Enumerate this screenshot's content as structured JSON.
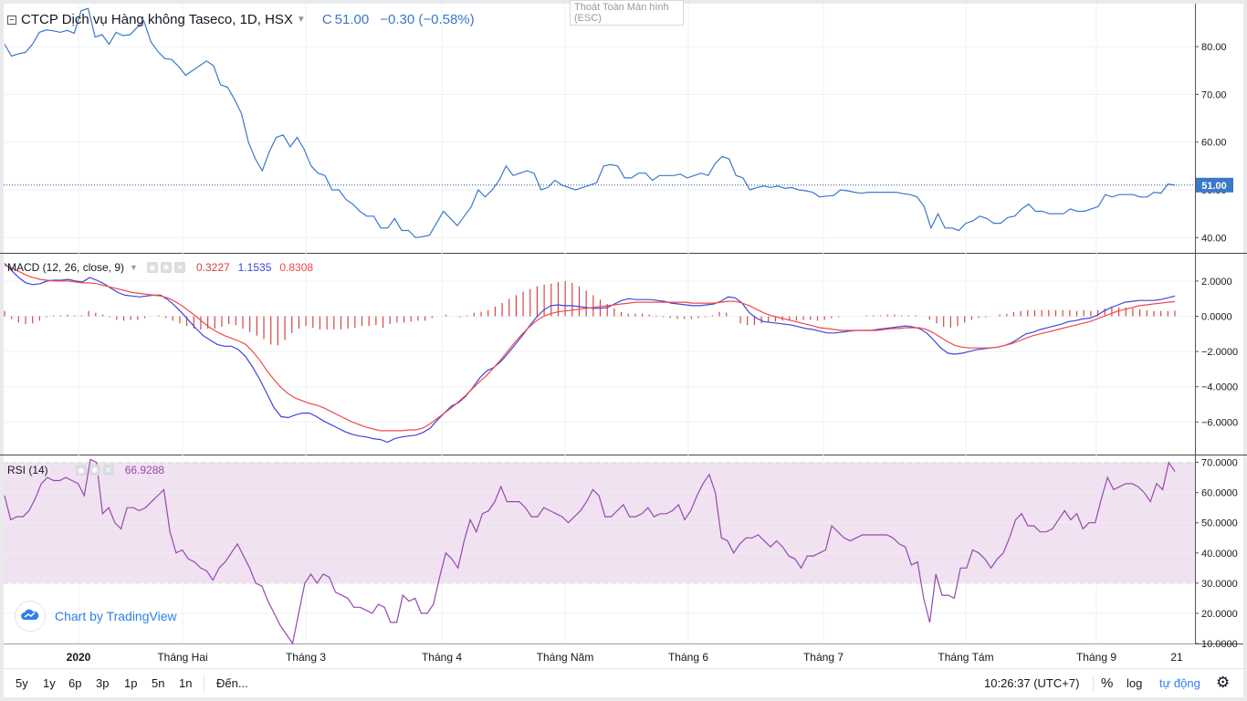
{
  "header": {
    "title": "CTCP Dịch vụ Hàng không Taseco, 1D, HSX",
    "close_label": "C",
    "close_value": "51.00",
    "change": "−0.30 (−0.58%)"
  },
  "tooltip": {
    "line1": "Thoát Toàn Màn hình",
    "line2": "(ESC)"
  },
  "colors": {
    "price": "#3a78c8",
    "macd": "#4045d6",
    "signal": "#f04848",
    "histogram": "#d64545",
    "rsi": "#9548b0",
    "rsi_band": "#f1e2f1"
  },
  "macd_legend": {
    "name": "MACD (12, 26, close, 9)",
    "hist": "0.3227",
    "macd": "1.1535",
    "signal": "0.8308"
  },
  "rsi_legend": {
    "name": "RSI (14)",
    "value": "66.9288"
  },
  "logo": {
    "text": "Chart by TradingView",
    "icon": "tradingview-cloud-icon"
  },
  "bottom_bar": {
    "ranges": [
      "5y",
      "1y",
      "6p",
      "3p",
      "1p",
      "5n",
      "1n"
    ],
    "goto": "Đến...",
    "time": "10:26:37 (UTC+7)",
    "percent": "%",
    "log": "log",
    "auto": "tự động",
    "settings_icon": "gear-icon"
  },
  "chart_data": [
    {
      "type": "line",
      "title": "CTCP Dịch vụ Hàng không Taseco, 1D, HSX",
      "series": [
        {
          "values": [
            80.5,
            78,
            78.5,
            78.8,
            80.5,
            83,
            83.5,
            83.3,
            83,
            83.4,
            82.8,
            87.5,
            88,
            82,
            82.5,
            80.5,
            83,
            82.3,
            82.5,
            84,
            85.4,
            81,
            79,
            77.5,
            77.3,
            75.8,
            74,
            75,
            76,
            77,
            76,
            72,
            71.5,
            69,
            66,
            60,
            56.5,
            54,
            58,
            61,
            61.5,
            59,
            61,
            58.5,
            55,
            53.5,
            53,
            50,
            50,
            48,
            47,
            45.5,
            44.5,
            44.5,
            42,
            42,
            44,
            41.5,
            41.5,
            40,
            40.2,
            40.5,
            43,
            45.5,
            44,
            42.5,
            44.5,
            46.5,
            50,
            48.5,
            50,
            52,
            55,
            53,
            53.5,
            54,
            53.5,
            50,
            50.5,
            52,
            51,
            50.5,
            50,
            50.5,
            51,
            51.5,
            55,
            55.3,
            55,
            52.5,
            52.5,
            53.5,
            53.5,
            52,
            53,
            53,
            53,
            53.3,
            52.5,
            53,
            53.5,
            53,
            55.5,
            57,
            56.5,
            53,
            52.5,
            50,
            50.5,
            50.8,
            50.5,
            50.8,
            50.3,
            50.5,
            50,
            49.8,
            49.5,
            48.5,
            48.7,
            48.8,
            50,
            49.8,
            49.5,
            49.3,
            49.5,
            49.5,
            49.5,
            49.5,
            49.5,
            49.2,
            49,
            48.5,
            46.5,
            42,
            45,
            42,
            42,
            41.5,
            43,
            43.5,
            44.5,
            44,
            43,
            43,
            44.2,
            44.5,
            46,
            47,
            45.5,
            45.5,
            45,
            45,
            45,
            46,
            45.5,
            45.5,
            46,
            46.5,
            49,
            48.5,
            49,
            49,
            49,
            48.5,
            48.5,
            49.5,
            49.3,
            51.2,
            51
          ]
        }
      ],
      "last_value": 51.0,
      "ylim": [
        37,
        89
      ],
      "yticks": [
        "80.00",
        "70.00",
        "60.00",
        "50.00",
        "40.00"
      ]
    },
    {
      "type": "line",
      "title": "MACD (12, 26, close, 9)",
      "series": [
        {
          "values": [
            3,
            2.6,
            2.2,
            1.9,
            1.8,
            1.85,
            2,
            2.05,
            2.05,
            2.1,
            2,
            1.95,
            2.2,
            2.05,
            1.85,
            1.6,
            1.35,
            1.2,
            1.15,
            1.1,
            1.15,
            1.2,
            1.2,
            0.95,
            0.6,
            0.2,
            -0.25,
            -0.7,
            -1.1,
            -1.35,
            -1.6,
            -1.7,
            -1.7,
            -1.9,
            -2.3,
            -2.9,
            -3.6,
            -4.4,
            -5.2,
            -5.7,
            -5.75,
            -5.6,
            -5.5,
            -5.5,
            -5.7,
            -5.95,
            -6.15,
            -6.35,
            -6.55,
            -6.7,
            -6.8,
            -6.85,
            -6.95,
            -7,
            -7.15,
            -6.95,
            -6.85,
            -6.8,
            -6.75,
            -6.6,
            -6.35,
            -5.9,
            -5.5,
            -5.1,
            -4.9,
            -4.55,
            -4.05,
            -3.5,
            -3.1,
            -2.9,
            -2.55,
            -2.1,
            -1.6,
            -1.1,
            -0.55,
            -0.05,
            0.35,
            0.6,
            0.65,
            0.6,
            0.6,
            0.55,
            0.5,
            0.45,
            0.45,
            0.5,
            0.7,
            0.9,
            1,
            0.95,
            0.95,
            0.95,
            0.9,
            0.85,
            0.75,
            0.7,
            0.65,
            0.6,
            0.6,
            0.65,
            0.7,
            0.85,
            1.1,
            1.05,
            0.75,
            0.2,
            -0.1,
            -0.3,
            -0.35,
            -0.4,
            -0.45,
            -0.5,
            -0.6,
            -0.7,
            -0.75,
            -0.85,
            -0.95,
            -0.95,
            -0.9,
            -0.85,
            -0.8,
            -0.8,
            -0.8,
            -0.75,
            -0.7,
            -0.65,
            -0.6,
            -0.55,
            -0.6,
            -0.7,
            -0.95,
            -1.35,
            -1.8,
            -2.1,
            -2.15,
            -2.1,
            -2,
            -1.9,
            -1.85,
            -1.8,
            -1.75,
            -1.65,
            -1.5,
            -1.25,
            -1,
            -0.9,
            -0.75,
            -0.65,
            -0.55,
            -0.45,
            -0.3,
            -0.25,
            -0.15,
            -0.1,
            0.05,
            0.3,
            0.5,
            0.65,
            0.8,
            0.85,
            0.9,
            0.9,
            0.9,
            0.95,
            1.05,
            1.15
          ]
        },
        {
          "values": [
            2.9,
            2.75,
            2.55,
            2.35,
            2.2,
            2.1,
            2.05,
            2,
            2,
            2,
            1.95,
            1.9,
            1.9,
            1.85,
            1.75,
            1.65,
            1.55,
            1.45,
            1.35,
            1.3,
            1.25,
            1.2,
            1.15,
            1.05,
            0.85,
            0.6,
            0.3,
            0,
            -0.35,
            -0.65,
            -0.9,
            -1.1,
            -1.25,
            -1.4,
            -1.6,
            -2,
            -2.5,
            -3.1,
            -3.6,
            -4.05,
            -4.4,
            -4.65,
            -4.8,
            -4.95,
            -5.05,
            -5.2,
            -5.4,
            -5.6,
            -5.8,
            -6,
            -6.15,
            -6.3,
            -6.4,
            -6.5,
            -6.5,
            -6.5,
            -6.5,
            -6.45,
            -6.45,
            -6.35,
            -6.1,
            -5.8,
            -5.5,
            -5.2,
            -4.85,
            -4.5,
            -4.1,
            -3.7,
            -3.35,
            -2.9,
            -2.45,
            -1.95,
            -1.45,
            -1,
            -0.6,
            -0.25,
            0,
            0.15,
            0.25,
            0.3,
            0.35,
            0.4,
            0.45,
            0.5,
            0.55,
            0.6,
            0.65,
            0.7,
            0.75,
            0.8,
            0.8,
            0.8,
            0.8,
            0.8,
            0.8,
            0.8,
            0.8,
            0.75,
            0.75,
            0.75,
            0.75,
            0.8,
            0.85,
            0.85,
            0.75,
            0.6,
            0.4,
            0.2,
            0.05,
            -0.05,
            -0.15,
            -0.25,
            -0.35,
            -0.45,
            -0.55,
            -0.65,
            -0.7,
            -0.75,
            -0.8,
            -0.8,
            -0.8,
            -0.8,
            -0.8,
            -0.8,
            -0.75,
            -0.7,
            -0.7,
            -0.65,
            -0.65,
            -0.65,
            -0.75,
            -0.95,
            -1.2,
            -1.45,
            -1.65,
            -1.75,
            -1.8,
            -1.8,
            -1.8,
            -1.8,
            -1.75,
            -1.65,
            -1.55,
            -1.4,
            -1.25,
            -1.1,
            -1,
            -0.9,
            -0.8,
            -0.7,
            -0.6,
            -0.5,
            -0.4,
            -0.3,
            -0.15,
            0,
            0.15,
            0.3,
            0.4,
            0.5,
            0.6,
            0.65,
            0.7,
            0.75,
            0.8,
            0.83
          ]
        }
      ],
      "histogram": [
        0.3,
        -0.15,
        -0.35,
        -0.45,
        -0.4,
        -0.25,
        -0.05,
        0.05,
        0.05,
        0.1,
        0.05,
        0.05,
        0.3,
        0.2,
        0.1,
        -0.05,
        -0.2,
        -0.25,
        -0.2,
        -0.2,
        -0.1,
        0,
        0.05,
        -0.1,
        -0.25,
        -0.4,
        -0.55,
        -0.7,
        -0.75,
        -0.7,
        -0.7,
        -0.6,
        -0.45,
        -0.5,
        -0.7,
        -0.9,
        -1.1,
        -1.3,
        -1.6,
        -1.65,
        -1.35,
        -0.95,
        -0.7,
        -0.55,
        -0.65,
        -0.75,
        -0.75,
        -0.75,
        -0.75,
        -0.7,
        -0.65,
        -0.55,
        -0.55,
        -0.5,
        -0.65,
        -0.45,
        -0.35,
        -0.35,
        -0.3,
        -0.25,
        -0.25,
        -0.1,
        0,
        0.1,
        0,
        -0.05,
        0.05,
        0.2,
        0.25,
        0.35,
        0.55,
        0.75,
        1,
        1.2,
        1.4,
        1.55,
        1.7,
        1.8,
        1.85,
        1.95,
        2,
        1.9,
        1.7,
        1.45,
        1.2,
        0.95,
        0.7,
        0.45,
        0.25,
        0.15,
        0.15,
        0.15,
        0.1,
        0.05,
        -0.05,
        -0.1,
        -0.15,
        -0.15,
        -0.15,
        -0.1,
        -0.05,
        0.05,
        0.25,
        0.2,
        0,
        -0.4,
        -0.5,
        -0.5,
        -0.4,
        -0.35,
        -0.3,
        -0.25,
        -0.25,
        -0.25,
        -0.2,
        -0.2,
        -0.25,
        -0.2,
        -0.1,
        -0.05,
        0,
        0,
        0,
        0.05,
        0.05,
        0.05,
        0.1,
        0.1,
        0.05,
        0.05,
        0.05,
        0,
        -0.2,
        -0.4,
        -0.6,
        -0.65,
        -0.55,
        -0.35,
        -0.2,
        -0.1,
        -0.05,
        0,
        0.1,
        0.15,
        0.25,
        0.3,
        0.35,
        0.35,
        0.35,
        0.35,
        0.35,
        0.35,
        0.35,
        0.3,
        0.35,
        0.3,
        0.35,
        0.45,
        0.5,
        0.5,
        0.5,
        0.45,
        0.4,
        0.35,
        0.3,
        0.3,
        0.3,
        0.32
      ],
      "ylim": [
        -7.8,
        3.5
      ],
      "yticks": [
        "2.0000",
        "0.0000",
        "−2.0000",
        "−4.0000",
        "−6.0000"
      ]
    },
    {
      "type": "line",
      "title": "RSI (14)",
      "series": [
        {
          "values": [
            59,
            51,
            52,
            52,
            54,
            58,
            63,
            65,
            64,
            64,
            65,
            64,
            63,
            59,
            71,
            70,
            53,
            55,
            50,
            48,
            55,
            55,
            54,
            55,
            57,
            59,
            61,
            47,
            40,
            41,
            38,
            37,
            35,
            34,
            31,
            35,
            37,
            40,
            43,
            39,
            35,
            30,
            29,
            24,
            20,
            16,
            13,
            10,
            20,
            30,
            33,
            30,
            33,
            32,
            27,
            26,
            25,
            22,
            22,
            21,
            20,
            23,
            22,
            17,
            17,
            26,
            24,
            25,
            20,
            20,
            23,
            32,
            40,
            38,
            35,
            44,
            51,
            47,
            53,
            54,
            57,
            62,
            57,
            57,
            57,
            55,
            52,
            52,
            55,
            54,
            53,
            52,
            50,
            52,
            54,
            57,
            61,
            59,
            52,
            52,
            54,
            56,
            52,
            52,
            53,
            55,
            52,
            53,
            53,
            54,
            56,
            51,
            54,
            59,
            63,
            66,
            60,
            45,
            44,
            40,
            43,
            45,
            45,
            46,
            44,
            42,
            44,
            42,
            39,
            38,
            35,
            39,
            39,
            40,
            41,
            49,
            47,
            45,
            44,
            45,
            46,
            46,
            46,
            46,
            46,
            45,
            43,
            42,
            36,
            37,
            25,
            17,
            33,
            26,
            26,
            25,
            35,
            35,
            41,
            40,
            38,
            35,
            38,
            40,
            45,
            51,
            53,
            49,
            49,
            47,
            47,
            48,
            51,
            54,
            51,
            53,
            48,
            50,
            50,
            58,
            65,
            61,
            62,
            63,
            63,
            62,
            60,
            57,
            63,
            61,
            70,
            67
          ]
        }
      ],
      "ylim": [
        10,
        72
      ],
      "yticks": [
        "70.0000",
        "60.0000",
        "50.0000",
        "40.0000",
        "30.0000",
        "20.0000",
        "10.0000"
      ],
      "bands": [
        30,
        70
      ]
    }
  ],
  "time_axis": [
    "2020",
    "Tháng Hai",
    "Tháng 3",
    "Tháng 4",
    "Tháng Năm",
    "Tháng 6",
    "Tháng 7",
    "Tháng Tám",
    "Tháng 9",
    "21"
  ]
}
